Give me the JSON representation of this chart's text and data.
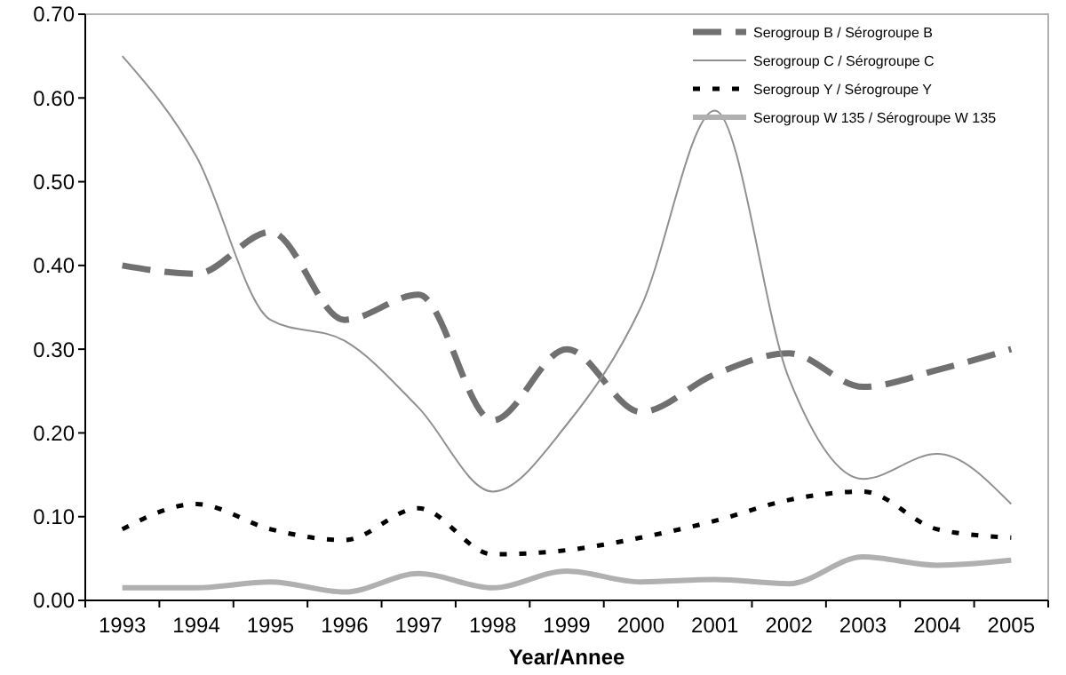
{
  "chart_data": {
    "type": "line",
    "xlabel": "Year/Annee",
    "categories": [
      "1993",
      "1994",
      "1995",
      "1996",
      "1997",
      "1998",
      "1999",
      "2000",
      "2001",
      "2002",
      "2003",
      "2004",
      "2005"
    ],
    "ylim": [
      0,
      0.7
    ],
    "yticks": [
      {
        "value": 0,
        "label": "0.00"
      },
      {
        "value": 0.1,
        "label": "0.10"
      },
      {
        "value": 0.2,
        "label": "0.20"
      },
      {
        "value": 0.3,
        "label": "0.30"
      },
      {
        "value": 0.4,
        "label": "0.40"
      },
      {
        "value": 0.5,
        "label": "0.50"
      },
      {
        "value": 0.6,
        "label": "0.60"
      },
      {
        "value": 0.7,
        "label": "0.70"
      }
    ],
    "grid": false,
    "legend": "top right",
    "series": [
      {
        "name": "Serogroup B / Sérogroupe B",
        "color": "#707070",
        "line_style": "dashed",
        "values": [
          0.4,
          0.39,
          0.44,
          0.335,
          0.365,
          0.215,
          0.3,
          0.225,
          0.27,
          0.295,
          0.255,
          0.275,
          0.3
        ]
      },
      {
        "name": "Serogroup C / Sérogroupe C",
        "color": "#909090",
        "line_style": "solid",
        "values": [
          0.65,
          0.53,
          0.335,
          0.31,
          0.23,
          0.13,
          0.21,
          0.35,
          0.585,
          0.265,
          0.145,
          0.175,
          0.115
        ]
      },
      {
        "name": "Serogroup Y / Sérogroupe Y",
        "color": "#000000",
        "line_style": "dotted",
        "values": [
          0.085,
          0.115,
          0.085,
          0.072,
          0.11,
          0.055,
          0.06,
          0.075,
          0.095,
          0.12,
          0.13,
          0.085,
          0.075
        ]
      },
      {
        "name": "Serogroup W 135 / Sérogroupe W 135",
        "color": "#b0b0b0",
        "line_style": "solid",
        "values": [
          0.015,
          0.015,
          0.022,
          0.01,
          0.032,
          0.015,
          0.035,
          0.022,
          0.025,
          0.02,
          0.052,
          0.042,
          0.048
        ]
      }
    ]
  }
}
